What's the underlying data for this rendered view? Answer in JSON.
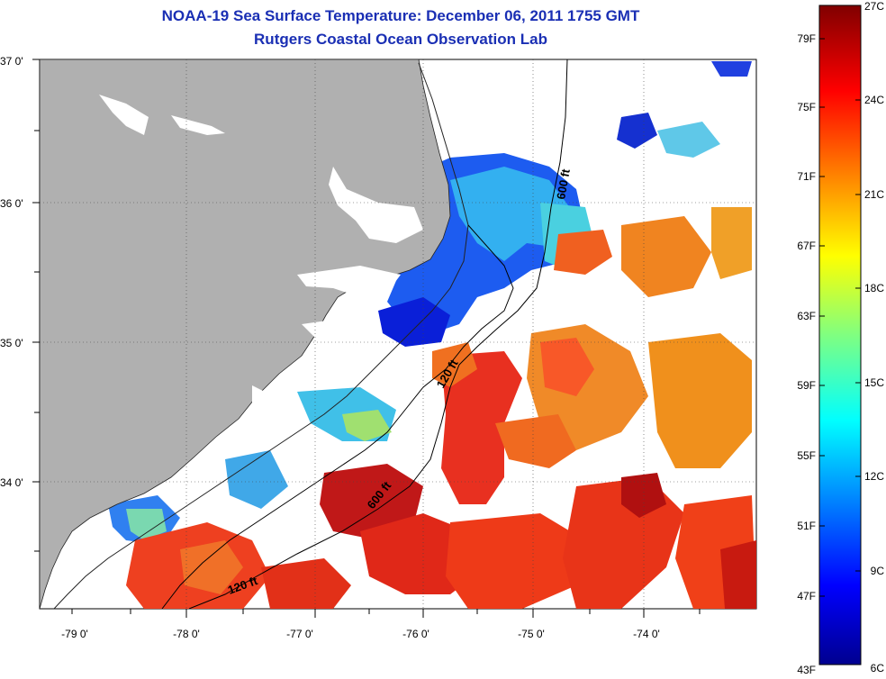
{
  "header": {
    "title": "NOAA-19 Sea Surface Temperature:  December 06, 2011 1755 GMT",
    "subtitle": "Rutgers Coastal Ocean Observation Lab"
  },
  "map": {
    "lon_ticks": [
      "-79 0'",
      "-78 0'",
      "-77 0'",
      "-76 0'",
      "-75 0'",
      "-74 0'"
    ],
    "lat_ticks": [
      "37 0'",
      "36 0'",
      "35 0'",
      "34 0'"
    ],
    "contours": [
      "600 ft",
      "120 ft",
      "600 ft",
      "120 ft"
    ]
  },
  "colorbar": {
    "fahrenheit": [
      "79F",
      "75F",
      "71F",
      "67F",
      "63F",
      "59F",
      "55F",
      "51F",
      "47F",
      "43F"
    ],
    "celsius": [
      "27C",
      "24C",
      "21C",
      "18C",
      "15C",
      "12C",
      "9C",
      "6C"
    ]
  },
  "colors": {
    "title": "#1a2fb4",
    "land": "#b0b0b0",
    "jet_dark_blue": "#00008f",
    "jet_dark_red": "#800000"
  }
}
